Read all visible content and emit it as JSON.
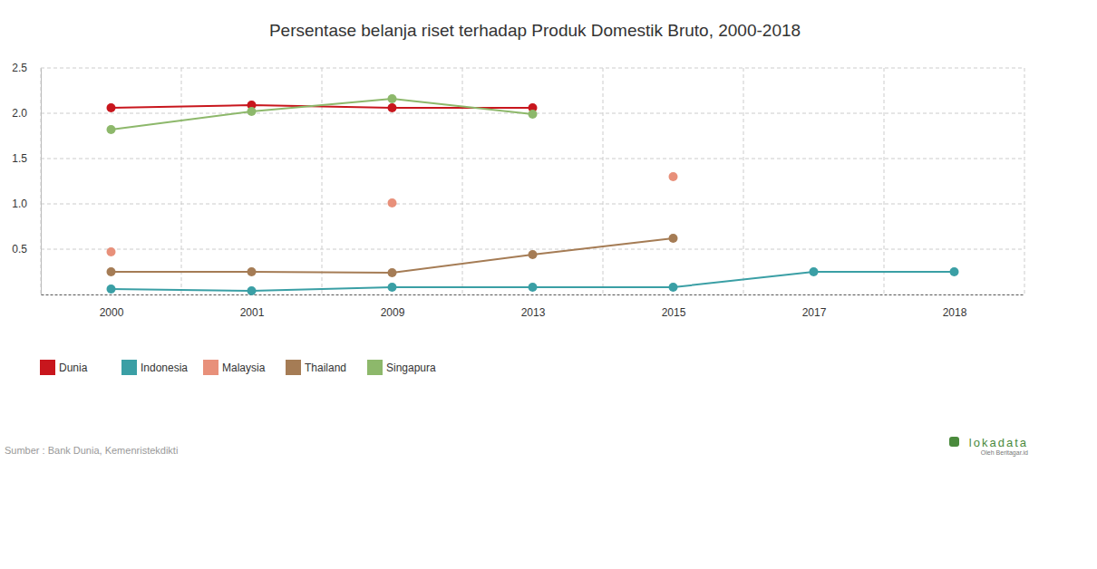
{
  "chart_data": {
    "type": "line",
    "title": "Persentase belanja riset terhadap Produk Domestik Bruto, 2000-2018",
    "categories": [
      "2000",
      "2001",
      "2009",
      "2013",
      "2015",
      "2017",
      "2018"
    ],
    "series": [
      {
        "name": "Dunia",
        "color": "#c8161d",
        "marker": "circle",
        "line_style": "solid",
        "values": [
          2.06,
          2.09,
          2.06,
          2.06,
          null,
          null,
          null
        ]
      },
      {
        "name": "Indonesia",
        "color": "#3a9fa5",
        "marker": "circle",
        "line_style": "solid",
        "values": [
          0.06,
          0.04,
          0.08,
          0.08,
          0.08,
          0.25,
          0.25
        ]
      },
      {
        "name": "Malaysia",
        "color": "#e8907a",
        "marker": "circle",
        "line_style": "none",
        "values": [
          0.47,
          null,
          1.01,
          null,
          1.3,
          null,
          null
        ]
      },
      {
        "name": "Thailand",
        "color": "#a57c55",
        "marker": "circle",
        "line_style": "solid",
        "values": [
          0.25,
          0.25,
          0.24,
          0.44,
          0.62,
          null,
          null
        ]
      },
      {
        "name": "Singapura",
        "color": "#8db86b",
        "marker": "circle",
        "line_style": "solid",
        "values": [
          1.82,
          2.02,
          2.16,
          1.99,
          null,
          null,
          null
        ]
      }
    ],
    "ylim": [
      0,
      2.5
    ],
    "yticks": [
      0.5,
      {
        "value": 1,
        "label": "1.0"
      },
      1.5,
      {
        "value": 2,
        "label": "2.0"
      },
      2.5
    ],
    "grid": true,
    "legend": "bottom",
    "source": "Sumber : Bank Dunia, Kemenristekdikti",
    "annotations": [
      "lokadata",
      "Oleh Beritagar.id"
    ]
  }
}
